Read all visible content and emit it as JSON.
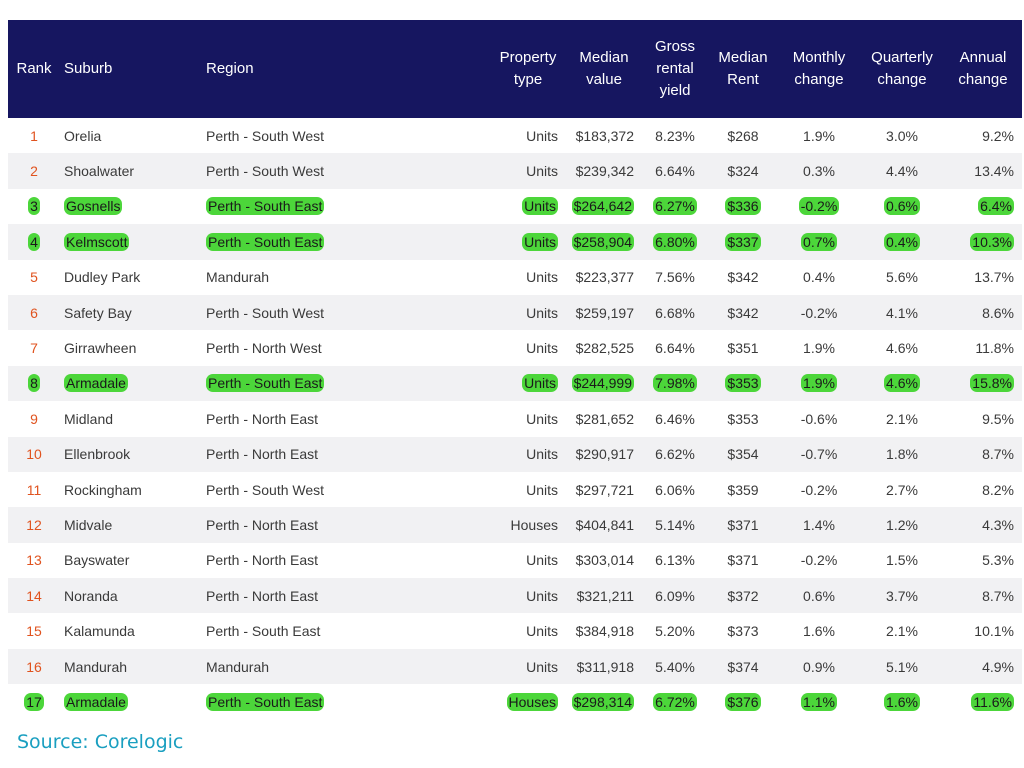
{
  "headers": {
    "rank": "Rank",
    "suburb": "Suburb",
    "region": "Region",
    "property_type": [
      "Property",
      "type"
    ],
    "median_value": [
      "Median",
      "value"
    ],
    "gross_rental_yield": [
      "Gross",
      "rental",
      "yield"
    ],
    "median_rent": [
      "Median",
      "Rent"
    ],
    "monthly_change": [
      "Monthly",
      "change"
    ],
    "quarterly_change": [
      "Quarterly",
      "change"
    ],
    "annual_change": [
      "Annual",
      "change"
    ]
  },
  "highlight_color": "#4cd63a",
  "header_color": "#161660",
  "rows": [
    {
      "rank": "1",
      "suburb": "Orelia",
      "region": "Perth - South West",
      "type": "Units",
      "value": "$183,372",
      "yield": "8.23%",
      "rent": "$268",
      "monthly": "1.9%",
      "quarterly": "3.0%",
      "annual": "9.2%",
      "highlighted": false
    },
    {
      "rank": "2",
      "suburb": "Shoalwater",
      "region": "Perth - South West",
      "type": "Units",
      "value": "$239,342",
      "yield": "6.64%",
      "rent": "$324",
      "monthly": "0.3%",
      "quarterly": "4.4%",
      "annual": "13.4%",
      "highlighted": false
    },
    {
      "rank": "3",
      "suburb": "Gosnells",
      "region": "Perth - South East",
      "type": "Units",
      "value": "$264,642",
      "yield": "6.27%",
      "rent": "$336",
      "monthly": "-0.2%",
      "quarterly": "0.6%",
      "annual": "6.4%",
      "highlighted": true
    },
    {
      "rank": "4",
      "suburb": "Kelmscott",
      "region": "Perth - South East",
      "type": "Units",
      "value": "$258,904",
      "yield": "6.80%",
      "rent": "$337",
      "monthly": "0.7%",
      "quarterly": "0.4%",
      "annual": "10.3%",
      "highlighted": true
    },
    {
      "rank": "5",
      "suburb": "Dudley Park",
      "region": "Mandurah",
      "type": "Units",
      "value": "$223,377",
      "yield": "7.56%",
      "rent": "$342",
      "monthly": "0.4%",
      "quarterly": "5.6%",
      "annual": "13.7%",
      "highlighted": false
    },
    {
      "rank": "6",
      "suburb": "Safety Bay",
      "region": "Perth - South West",
      "type": "Units",
      "value": "$259,197",
      "yield": "6.68%",
      "rent": "$342",
      "monthly": "-0.2%",
      "quarterly": "4.1%",
      "annual": "8.6%",
      "highlighted": false
    },
    {
      "rank": "7",
      "suburb": "Girrawheen",
      "region": "Perth - North West",
      "type": "Units",
      "value": "$282,525",
      "yield": "6.64%",
      "rent": "$351",
      "monthly": "1.9%",
      "quarterly": "4.6%",
      "annual": "11.8%",
      "highlighted": false
    },
    {
      "rank": "8",
      "suburb": "Armadale",
      "region": "Perth - South East",
      "type": "Units",
      "value": "$244,999",
      "yield": "7.98%",
      "rent": "$353",
      "monthly": "1.9%",
      "quarterly": "4.6%",
      "annual": "15.8%",
      "highlighted": true
    },
    {
      "rank": "9",
      "suburb": "Midland",
      "region": "Perth - North East",
      "type": "Units",
      "value": "$281,652",
      "yield": "6.46%",
      "rent": "$353",
      "monthly": "-0.6%",
      "quarterly": "2.1%",
      "annual": "9.5%",
      "highlighted": false
    },
    {
      "rank": "10",
      "suburb": "Ellenbrook",
      "region": "Perth - North East",
      "type": "Units",
      "value": "$290,917",
      "yield": "6.62%",
      "rent": "$354",
      "monthly": "-0.7%",
      "quarterly": "1.8%",
      "annual": "8.7%",
      "highlighted": false
    },
    {
      "rank": "11",
      "suburb": "Rockingham",
      "region": "Perth - South West",
      "type": "Units",
      "value": "$297,721",
      "yield": "6.06%",
      "rent": "$359",
      "monthly": "-0.2%",
      "quarterly": "2.7%",
      "annual": "8.2%",
      "highlighted": false
    },
    {
      "rank": "12",
      "suburb": "Midvale",
      "region": "Perth - North East",
      "type": "Houses",
      "value": "$404,841",
      "yield": "5.14%",
      "rent": "$371",
      "monthly": "1.4%",
      "quarterly": "1.2%",
      "annual": "4.3%",
      "highlighted": false
    },
    {
      "rank": "13",
      "suburb": "Bayswater",
      "region": "Perth - North East",
      "type": "Units",
      "value": "$303,014",
      "yield": "6.13%",
      "rent": "$371",
      "monthly": "-0.2%",
      "quarterly": "1.5%",
      "annual": "5.3%",
      "highlighted": false
    },
    {
      "rank": "14",
      "suburb": "Noranda",
      "region": "Perth - North East",
      "type": "Units",
      "value": "$321,211",
      "yield": "6.09%",
      "rent": "$372",
      "monthly": "0.6%",
      "quarterly": "3.7%",
      "annual": "8.7%",
      "highlighted": false
    },
    {
      "rank": "15",
      "suburb": "Kalamunda",
      "region": "Perth - South East",
      "type": "Units",
      "value": "$384,918",
      "yield": "5.20%",
      "rent": "$373",
      "monthly": "1.6%",
      "quarterly": "2.1%",
      "annual": "10.1%",
      "highlighted": false
    },
    {
      "rank": "16",
      "suburb": "Mandurah",
      "region": "Mandurah",
      "type": "Units",
      "value": "$311,918",
      "yield": "5.40%",
      "rent": "$374",
      "monthly": "0.9%",
      "quarterly": "5.1%",
      "annual": "4.9%",
      "highlighted": false
    },
    {
      "rank": "17",
      "suburb": "Armadale",
      "region": "Perth - South East",
      "type": "Houses",
      "value": "$298,314",
      "yield": "6.72%",
      "rent": "$376",
      "monthly": "1.1%",
      "quarterly": "1.6%",
      "annual": "11.6%",
      "highlighted": true
    }
  ],
  "source": "Source: Corelogic"
}
